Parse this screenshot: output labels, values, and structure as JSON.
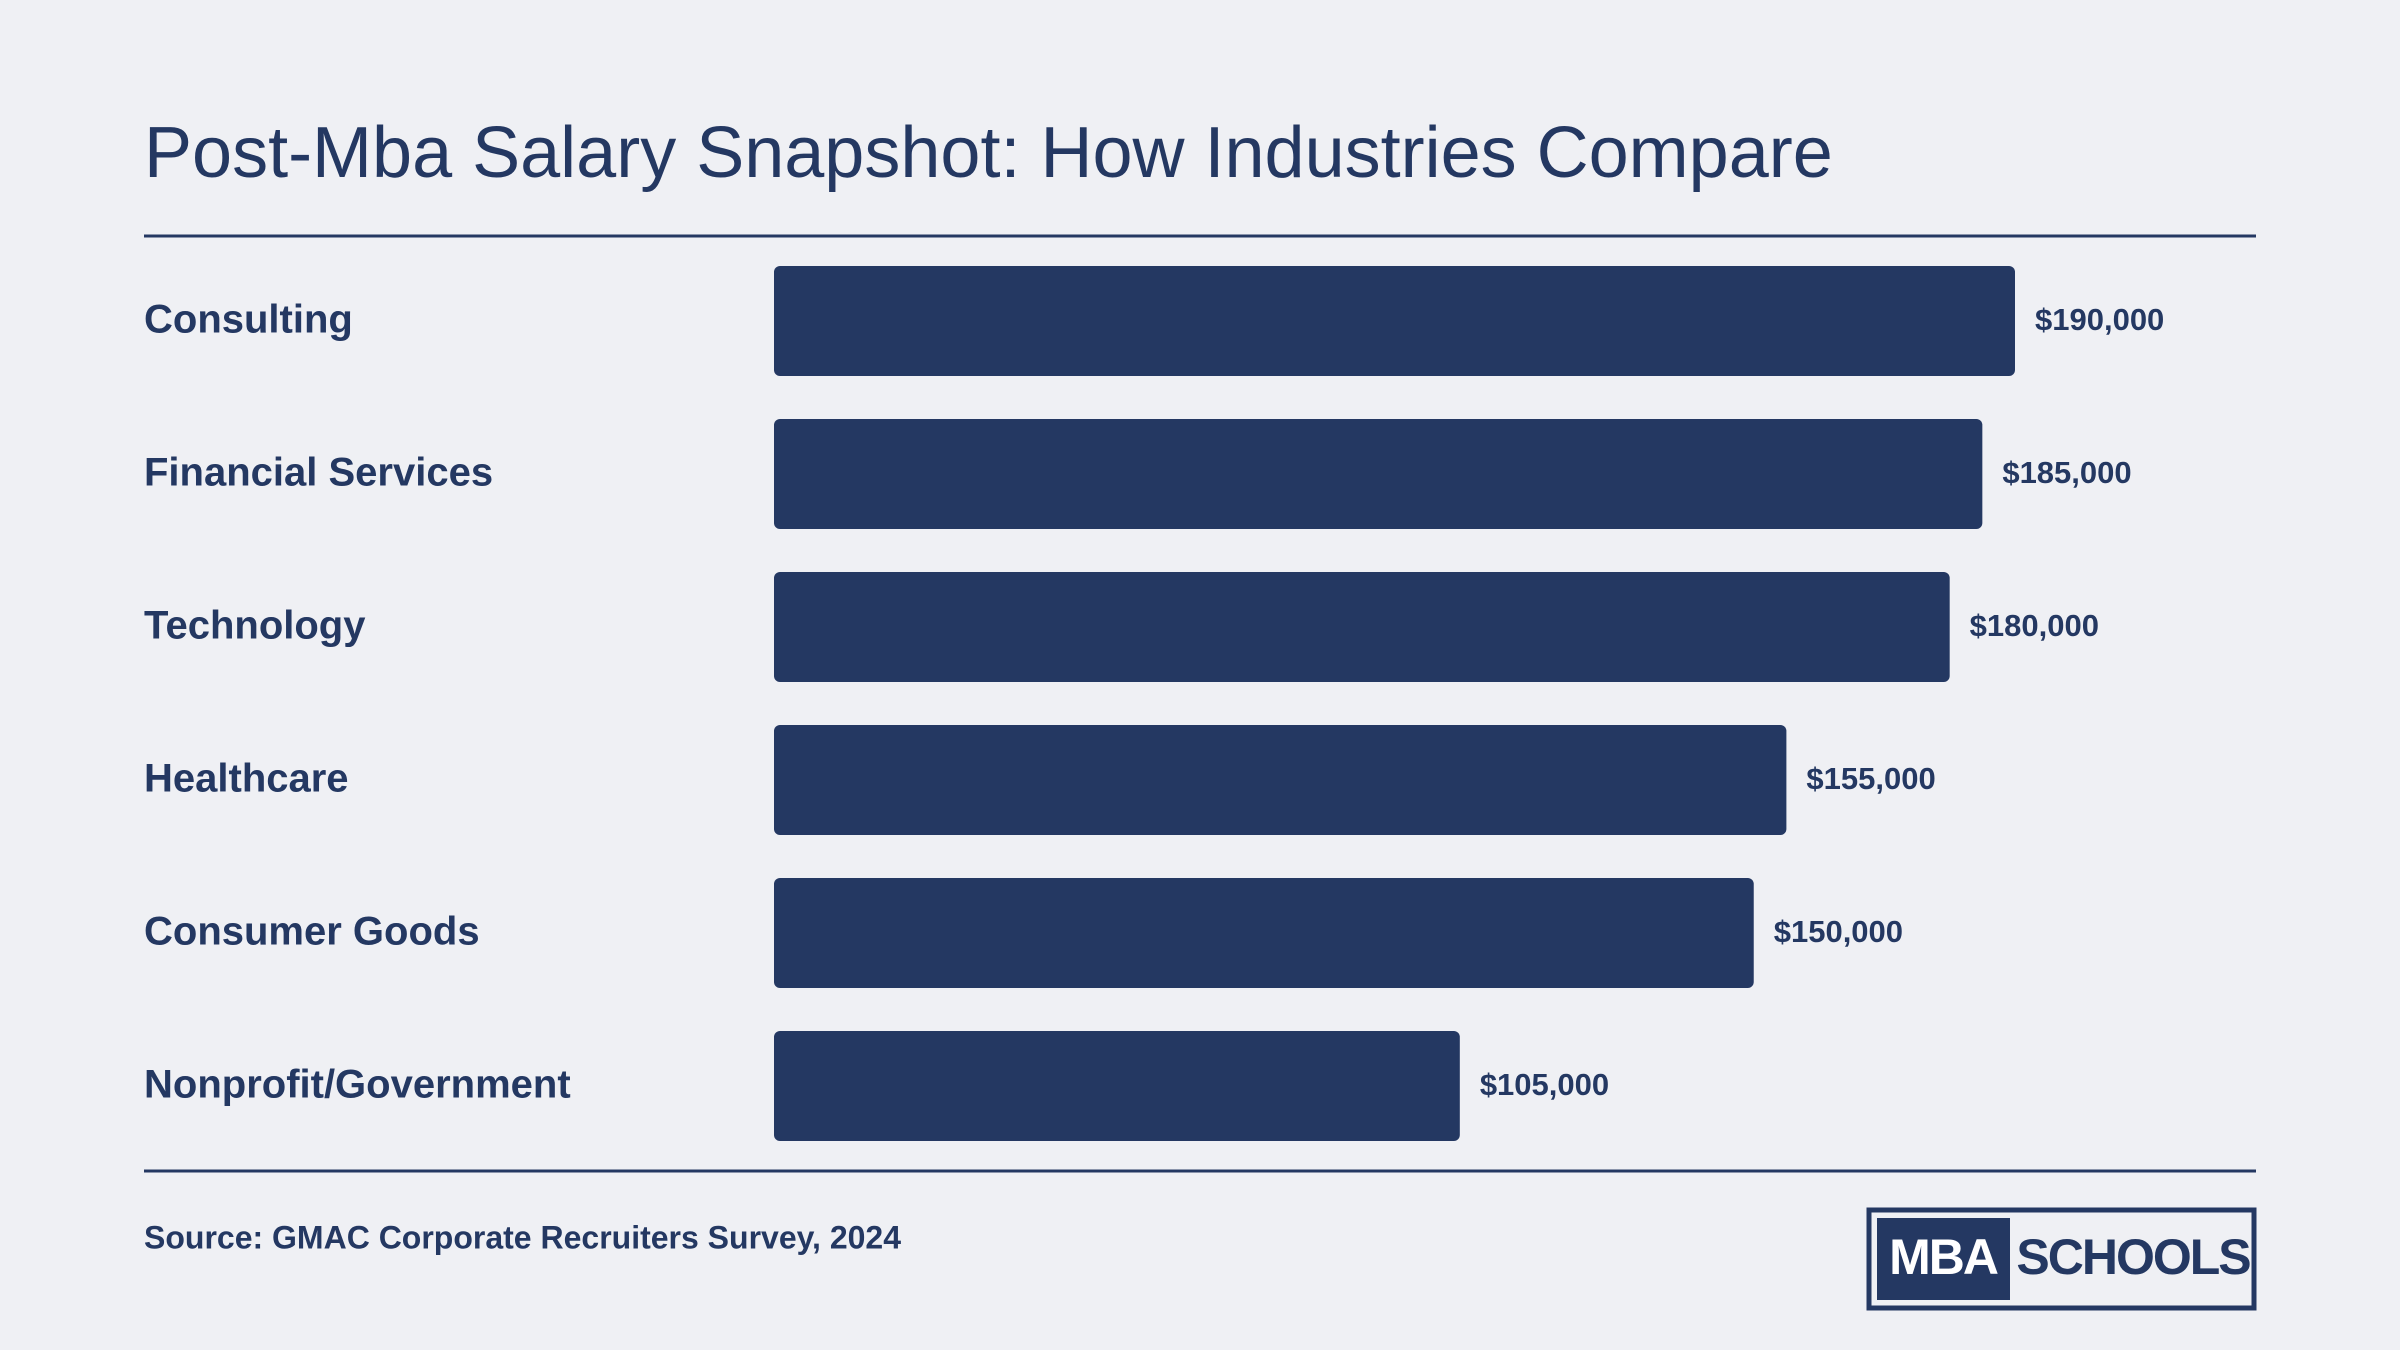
{
  "chart_data": {
    "type": "bar",
    "orientation": "horizontal",
    "title": "Post-Mba Salary Snapshot: How Industries Compare",
    "categories": [
      "Consulting",
      "Financial Services",
      "Technology",
      "Healthcare",
      "Consumer Goods",
      "Nonprofit/Government"
    ],
    "values": [
      190000,
      185000,
      180000,
      155000,
      150000,
      105000
    ],
    "value_labels": [
      "$190,000",
      "$185,000",
      "$180,000",
      "$155,000",
      "$150,000",
      "$105,000"
    ],
    "color": "#243862",
    "source": "Source: GMAC Corporate Recruiters Survey, 2024"
  },
  "logo": {
    "left": "MBA",
    "right": "SCHOOLS"
  }
}
